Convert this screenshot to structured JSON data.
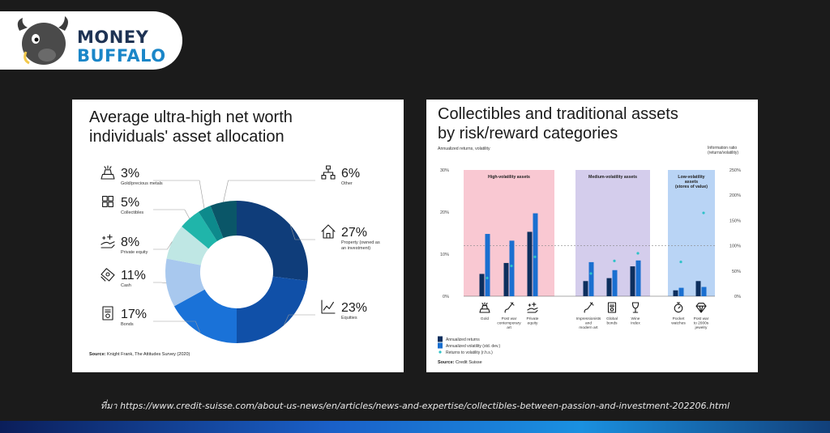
{
  "brand": {
    "line1": "MONEY",
    "line2": "BUFFALO"
  },
  "left_panel": {
    "title_line1": "Average ultra-high net worth",
    "title_line2": "individuals' asset allocation",
    "source": "Knight Frank, The Attitudes Survey (2020)",
    "source_label": "Source:"
  },
  "right_panel": {
    "title_line1": "Collectibles and traditional assets",
    "title_line2": "by risk/reward categories",
    "left_axis_label": "Annualized returns, volatility",
    "right_axis_label_line1": "Information ratio",
    "right_axis_label_line2": "(returns/volatility)",
    "source_label": "Source:",
    "source": "Credit Suisse"
  },
  "footer": {
    "text": "ที่มา https://www.credit-suisse.com/about-us-news/en/articles/news-and-expertise/collectibles-between-passion-and-investment-202206.html"
  },
  "chart_data": [
    {
      "type": "pie",
      "title": "Average ultra-high net worth individuals' asset allocation",
      "slices": [
        {
          "label": "Property (owned as an investment)",
          "label_line1": "Property (owned as",
          "label_line2": "an investment)",
          "pct_text": "27%",
          "value": 27,
          "color": "#0f3d7a",
          "icon": "house-icon"
        },
        {
          "label": "Equities",
          "label_line1": "Equities",
          "label_line2": "",
          "pct_text": "23%",
          "value": 23,
          "color": "#1050a8",
          "icon": "line-chart-icon"
        },
        {
          "label": "Bonds",
          "label_line1": "Bonds",
          "label_line2": "",
          "pct_text": "17%",
          "value": 17,
          "color": "#1a72d8",
          "icon": "certificate-icon"
        },
        {
          "label": "Cash",
          "label_line1": "Cash",
          "label_line2": "",
          "pct_text": "11%",
          "value": 11,
          "color": "#a8c8ee",
          "icon": "cash-icon"
        },
        {
          "label": "Private equity",
          "label_line1": "Private equity",
          "label_line2": "",
          "pct_text": "8%",
          "value": 8,
          "color": "#bfe7e4",
          "icon": "hand-sparkle-icon"
        },
        {
          "label": "Collectibles",
          "label_line1": "Collectibles",
          "label_line2": "",
          "pct_text": "5%",
          "value": 5,
          "color": "#20b5aa",
          "icon": "blocks-icon"
        },
        {
          "label": "Gold/precious metals",
          "label_line1": "Gold/precious metals",
          "label_line2": "",
          "pct_text": "3%",
          "value": 3,
          "color": "#0d8a8c",
          "icon": "gold-bars-icon"
        },
        {
          "label": "Other",
          "label_line1": "Other",
          "label_line2": "",
          "pct_text": "6%",
          "value": 6,
          "color": "#0a5668",
          "icon": "hierarchy-icon"
        }
      ]
    },
    {
      "type": "bar",
      "title": "Collectibles and traditional assets by risk/reward categories",
      "y_left_ticks": [
        "30%",
        "20%",
        "10%",
        "0%"
      ],
      "y_right_ticks": [
        "250%",
        "200%",
        "150%",
        "100%",
        "50%",
        "0%"
      ],
      "ylim_left": [
        0,
        30
      ],
      "ylim_right": [
        0,
        250
      ],
      "reference_line_right": 100,
      "groups": [
        {
          "label_line1": "High-volatility assets",
          "label_line2": "",
          "label_line3": "",
          "color": "#f9c8d2",
          "start": 0,
          "end": 3
        },
        {
          "label_line1": "Medium-volatility assets",
          "label_line2": "",
          "label_line3": "",
          "color": "#d4cdec",
          "start": 3,
          "end": 6
        },
        {
          "label_line1": "Low-volatility",
          "label_line2": "assets",
          "label_line3": "(stores of value)",
          "color": "#b9d4f5",
          "start": 6,
          "end": 8
        }
      ],
      "categories": [
        {
          "label_lines": [
            "Gold",
            "",
            ""
          ],
          "icon": "gold-bars-icon"
        },
        {
          "label_lines": [
            "Post war",
            "contemporary",
            "art"
          ],
          "icon": "paintbrush-icon"
        },
        {
          "label_lines": [
            "Private",
            "equity",
            ""
          ],
          "icon": "hand-sparkle-icon"
        },
        {
          "label_lines": [
            "Impressionists",
            "and",
            "modern art"
          ],
          "icon": "paintbrush-icon"
        },
        {
          "label_lines": [
            "Global",
            "bonds",
            ""
          ],
          "icon": "certificate-icon"
        },
        {
          "label_lines": [
            "Wine",
            "index",
            ""
          ],
          "icon": "wine-glass-icon"
        },
        {
          "label_lines": [
            "Pocket",
            "watches",
            ""
          ],
          "icon": "stopwatch-icon"
        },
        {
          "label_lines": [
            "Post war",
            "to 2000s",
            "jewelry"
          ],
          "icon": "diamond-icon"
        }
      ],
      "series": [
        {
          "name": "Annualized returns",
          "color": "#0d2f5e",
          "values": [
            5.3,
            7.9,
            15.3,
            3.6,
            4.3,
            7.1,
            1.4,
            3.6
          ]
        },
        {
          "name": "Annualized volatility (std. dev.)",
          "color": "#1a6fd0",
          "values": [
            14.8,
            13.2,
            19.7,
            8.1,
            6.2,
            8.5,
            2.0,
            2.2
          ]
        },
        {
          "name": "Returns to volatility (r.h.s.)",
          "color": "#2fc2c8",
          "marker": "point",
          "axis": "right",
          "values": [
            36,
            60,
            78,
            45,
            70,
            85,
            68,
            165
          ]
        }
      ]
    }
  ]
}
